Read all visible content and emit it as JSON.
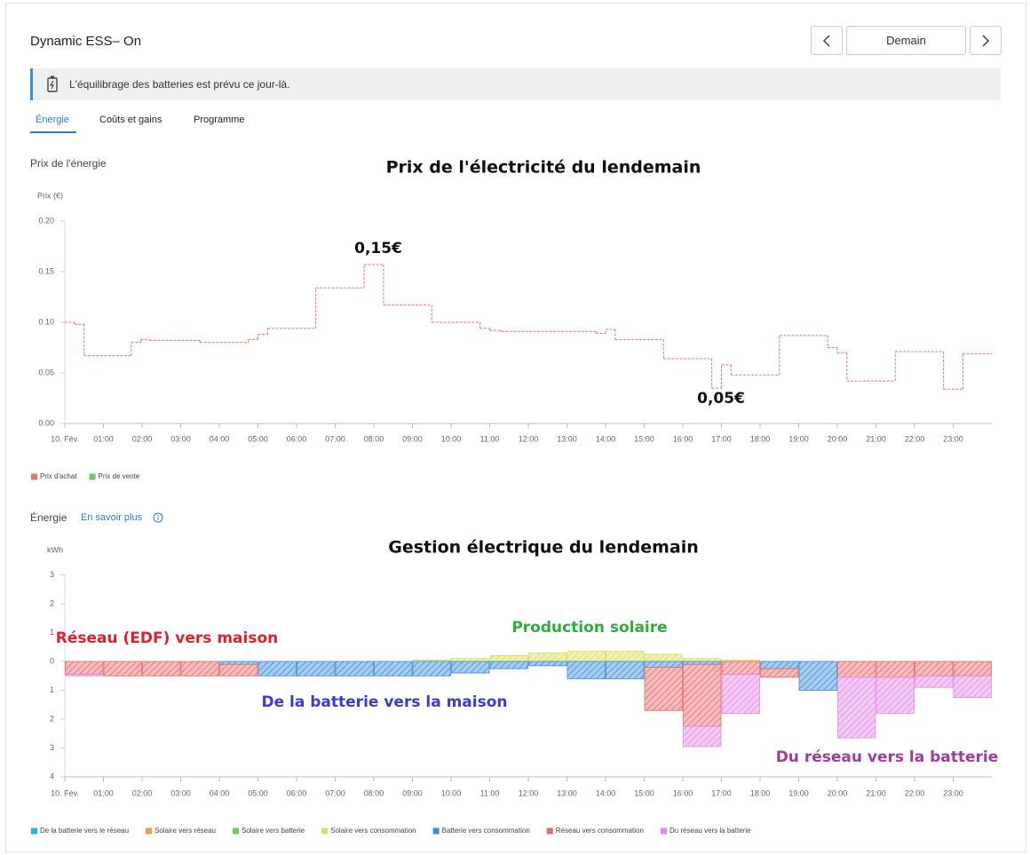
{
  "header": {
    "title": "Dynamic ESS– On",
    "button": "Demain"
  },
  "banner": {
    "text": "L'équilibrage des batteries est prévu ce jour-là."
  },
  "tabs": [
    "Énergie",
    "Coûts et gains",
    "Programme"
  ],
  "price_section": {
    "label": "Prix de l'énergie"
  },
  "energy_section": {
    "label": "Énergie",
    "link": "En savoir plus"
  },
  "chart_data": [
    {
      "type": "line",
      "title": "Prix de l'électricité du lendemain",
      "y_label": "Prix (€)",
      "annotations": [
        "0,15€",
        "0,05€"
      ],
      "xlim": [
        0,
        24
      ],
      "xticks": [
        {
          "value": 0,
          "label": "10. Fév."
        },
        {
          "value": 1,
          "label": "01:00"
        },
        {
          "value": 2,
          "label": "02:00"
        },
        {
          "value": 3,
          "label": "03:00"
        },
        {
          "value": 4,
          "label": "04:00"
        },
        {
          "value": 5,
          "label": "05:00"
        },
        {
          "value": 6,
          "label": "06:00"
        },
        {
          "value": 7,
          "label": "07:00"
        },
        {
          "value": 8,
          "label": "08:00"
        },
        {
          "value": 9,
          "label": "09:00"
        },
        {
          "value": 10,
          "label": "10:00"
        },
        {
          "value": 11,
          "label": "11:00"
        },
        {
          "value": 12,
          "label": "12:00"
        },
        {
          "value": 13,
          "label": "13:00"
        },
        {
          "value": 14,
          "label": "14:00"
        },
        {
          "value": 15,
          "label": "15:00"
        },
        {
          "value": 16,
          "label": "16:00"
        },
        {
          "value": 17,
          "label": "17:00"
        },
        {
          "value": 18,
          "label": "18:00"
        },
        {
          "value": 19,
          "label": "19:00"
        },
        {
          "value": 20,
          "label": "20:00"
        },
        {
          "value": 21,
          "label": "21:00"
        },
        {
          "value": 22,
          "label": "22:00"
        },
        {
          "value": 23,
          "label": "23:00"
        }
      ],
      "ylim": [
        0,
        0.2
      ],
      "yticks": [
        {
          "value": 0,
          "label": "0.00"
        },
        0.05,
        {
          "value": 0.1,
          "label": "0.10"
        },
        0.15,
        {
          "value": 0.2,
          "label": "0.20"
        }
      ],
      "grid": false,
      "series": [
        {
          "name": "Prix d'achat",
          "color": "#f07070",
          "x": [
            0,
            0.25,
            0.5,
            1.72,
            1.97,
            2.2,
            3.5,
            4.75,
            5.0,
            5.25,
            6.5,
            7.75,
            8.25,
            9.5,
            10.75,
            11.0,
            11.3,
            13.75,
            14.0,
            14.25,
            15.5,
            16.75,
            17.0,
            17.25,
            18.5,
            19.75,
            20.0,
            20.25,
            21.5,
            22.75,
            23.25
          ],
          "values": [
            0.1,
            0.098,
            0.067,
            0.08,
            0.083,
            0.082,
            0.08,
            0.083,
            0.088,
            0.094,
            0.134,
            0.157,
            0.117,
            0.1,
            0.094,
            0.092,
            0.091,
            0.089,
            0.093,
            0.083,
            0.064,
            0.035,
            0.058,
            0.048,
            0.087,
            0.075,
            0.07,
            0.042,
            0.071,
            0.034,
            0.069
          ]
        },
        {
          "name": "Prix de vente",
          "color": "#7cc46a",
          "x": [],
          "values": []
        }
      ]
    },
    {
      "type": "bar",
      "stacked": true,
      "title": "Gestion électrique du lendemain",
      "y_label": "kWh",
      "annotations": [
        {
          "text": "Réseau (EDF) vers maison",
          "color": "#e02030"
        },
        {
          "text": "Production solaire",
          "color": "#2fae3c"
        },
        {
          "text": "De la batterie vers la maison",
          "color": "#3c3ccc"
        },
        {
          "text": "Du réseau vers la batterie",
          "color": "#a03c9c"
        }
      ],
      "x": [
        0,
        1,
        2,
        3,
        4,
        5,
        6,
        7,
        8,
        9,
        10,
        11,
        12,
        13,
        14,
        15,
        16,
        17,
        18,
        19,
        20,
        21,
        22,
        23
      ],
      "xlim": [
        0,
        24
      ],
      "xticks": [
        {
          "value": 0,
          "label": "10. Fév."
        },
        {
          "value": 1,
          "label": "01:00"
        },
        {
          "value": 2,
          "label": "02:00"
        },
        {
          "value": 3,
          "label": "03:00"
        },
        {
          "value": 4,
          "label": "04:00"
        },
        {
          "value": 5,
          "label": "05:00"
        },
        {
          "value": 6,
          "label": "06:00"
        },
        {
          "value": 7,
          "label": "07:00"
        },
        {
          "value": 8,
          "label": "08:00"
        },
        {
          "value": 9,
          "label": "09:00"
        },
        {
          "value": 10,
          "label": "10:00"
        },
        {
          "value": 11,
          "label": "11:00"
        },
        {
          "value": 12,
          "label": "12:00"
        },
        {
          "value": 13,
          "label": "13:00"
        },
        {
          "value": 14,
          "label": "14:00"
        },
        {
          "value": 15,
          "label": "15:00"
        },
        {
          "value": 16,
          "label": "16:00"
        },
        {
          "value": 17,
          "label": "17:00"
        },
        {
          "value": 18,
          "label": "18:00"
        },
        {
          "value": 19,
          "label": "19:00"
        },
        {
          "value": 20,
          "label": "20:00"
        },
        {
          "value": 21,
          "label": "21:00"
        },
        {
          "value": 22,
          "label": "22:00"
        },
        {
          "value": 23,
          "label": "23:00"
        }
      ],
      "ylim": [
        -4,
        3
      ],
      "yticks": [
        3,
        2,
        1,
        0,
        {
          "value": -1,
          "label": "1"
        },
        {
          "value": -2,
          "label": "2"
        },
        {
          "value": -3,
          "label": "3"
        },
        {
          "value": -4,
          "label": "4"
        }
      ],
      "series": [
        {
          "name": "De la batterie vers le réseau",
          "color": "#1fb8d0",
          "values": [
            0,
            0,
            0,
            0,
            0,
            0,
            0,
            0,
            0,
            0,
            0,
            0,
            0,
            0,
            0,
            0,
            0,
            0,
            0,
            0,
            0,
            0,
            0,
            0
          ]
        },
        {
          "name": "Solaire vers réseau",
          "color": "#f0a030",
          "values": [
            0,
            0,
            0,
            0,
            0,
            0,
            0,
            0,
            0,
            0,
            0,
            0,
            0,
            0,
            0,
            0,
            0,
            0,
            0,
            0,
            0,
            0,
            0,
            0
          ]
        },
        {
          "name": "Solaire vers batterie",
          "color": "#7cc46a",
          "values": [
            0,
            0,
            0,
            0,
            0,
            0,
            0,
            0,
            0,
            0,
            0,
            0,
            0,
            0,
            0,
            0,
            0,
            0,
            0,
            0,
            0,
            0,
            0,
            0
          ]
        },
        {
          "name": "Solaire vers consommation",
          "color": "#d8e05a",
          "values": [
            0,
            0,
            0,
            0,
            0,
            0,
            0,
            0,
            0,
            0.05,
            0.1,
            0.2,
            0.3,
            0.35,
            0.35,
            0.25,
            0.1,
            0.05,
            0,
            0,
            0,
            0,
            0,
            0
          ]
        },
        {
          "name": "Batterie vers consommation",
          "color": "#3d8ed8",
          "values": [
            0,
            0,
            0,
            0,
            -0.1,
            -0.5,
            -0.5,
            -0.5,
            -0.5,
            -0.5,
            -0.4,
            -0.25,
            -0.15,
            -0.6,
            -0.6,
            -0.2,
            -0.1,
            0,
            -0.25,
            -1.0,
            0,
            0,
            0,
            0
          ]
        },
        {
          "name": "Réseau vers consommation",
          "color": "#e86a6a",
          "values": [
            -0.45,
            -0.5,
            -0.5,
            -0.5,
            -0.4,
            0,
            0,
            0,
            0,
            0,
            0,
            0,
            0,
            0,
            0,
            -1.5,
            -2.15,
            -0.45,
            -0.3,
            0,
            -0.55,
            -0.55,
            -0.5,
            -0.5
          ]
        },
        {
          "name": "Du réseau vers la batterie",
          "color": "#e48ae6",
          "values": [
            -0.05,
            0,
            0,
            0,
            0,
            0,
            0,
            0,
            0,
            0,
            0,
            0,
            0,
            0,
            0,
            0,
            -0.7,
            -1.35,
            0,
            0,
            -2.1,
            -1.25,
            -0.4,
            -0.75
          ]
        }
      ]
    }
  ]
}
